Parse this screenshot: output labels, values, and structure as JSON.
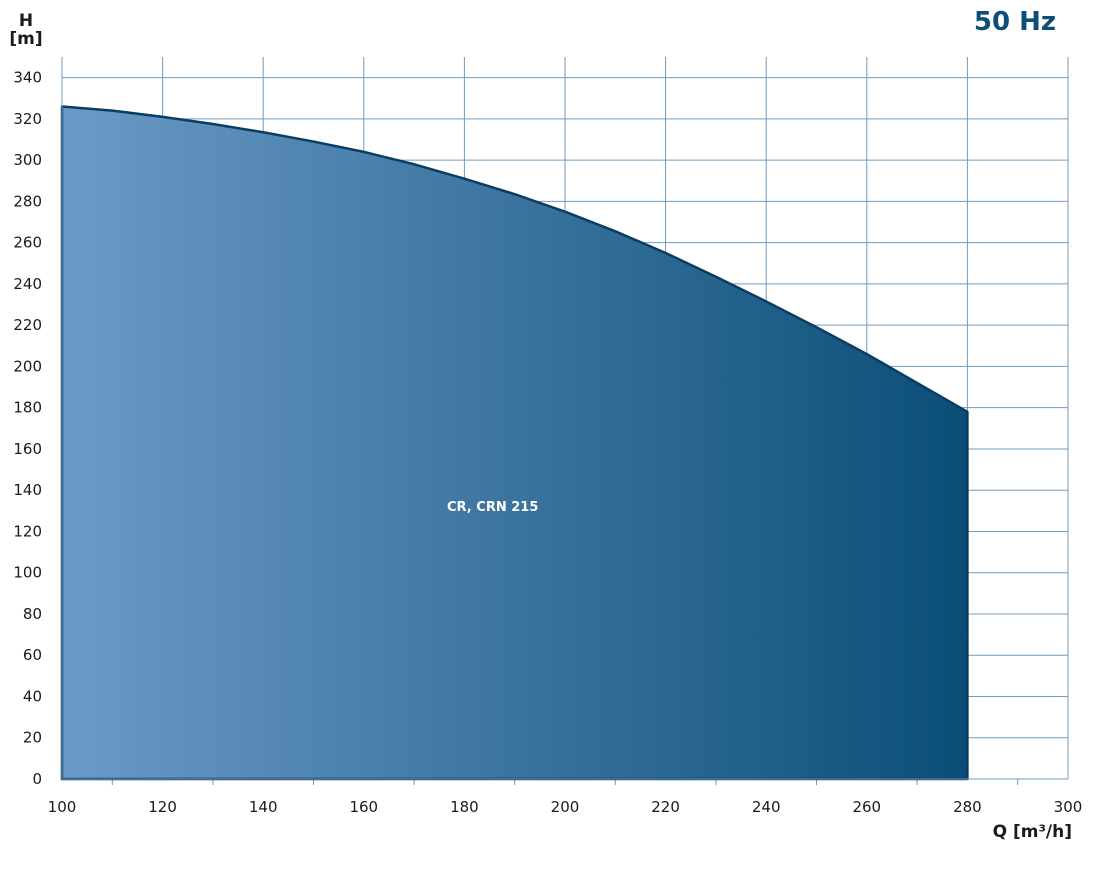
{
  "frequency_label": "50 Hz",
  "colors": {
    "fill_start": "#6b9ac6",
    "fill_end": "#0a4e77",
    "outline": "#0b3d63",
    "grid": "#6f9bc4"
  },
  "chart_data": {
    "type": "area",
    "title": "",
    "ylabel_line1": "H",
    "ylabel_line2": "[m]",
    "xlabel": "Q [m³/h]",
    "xlim": [
      100,
      300
    ],
    "ylim": [
      0,
      350
    ],
    "x_ticks": [
      100,
      120,
      140,
      160,
      180,
      200,
      220,
      240,
      260,
      280,
      300
    ],
    "y_ticks": [
      0,
      20,
      40,
      60,
      80,
      100,
      120,
      140,
      160,
      180,
      200,
      220,
      240,
      260,
      280,
      300,
      320,
      340
    ],
    "grid": true,
    "series": [
      {
        "label": "CR, CRN 215",
        "x": [
          100,
          110,
          120,
          130,
          140,
          150,
          160,
          170,
          180,
          190,
          200,
          210,
          220,
          230,
          240,
          250,
          260,
          270,
          280
        ],
        "y": [
          326,
          324,
          321,
          317.5,
          313.5,
          309,
          304,
          298,
          291,
          283.5,
          275,
          265.5,
          255,
          243.5,
          231.5,
          219,
          206,
          192,
          178
        ]
      }
    ]
  }
}
